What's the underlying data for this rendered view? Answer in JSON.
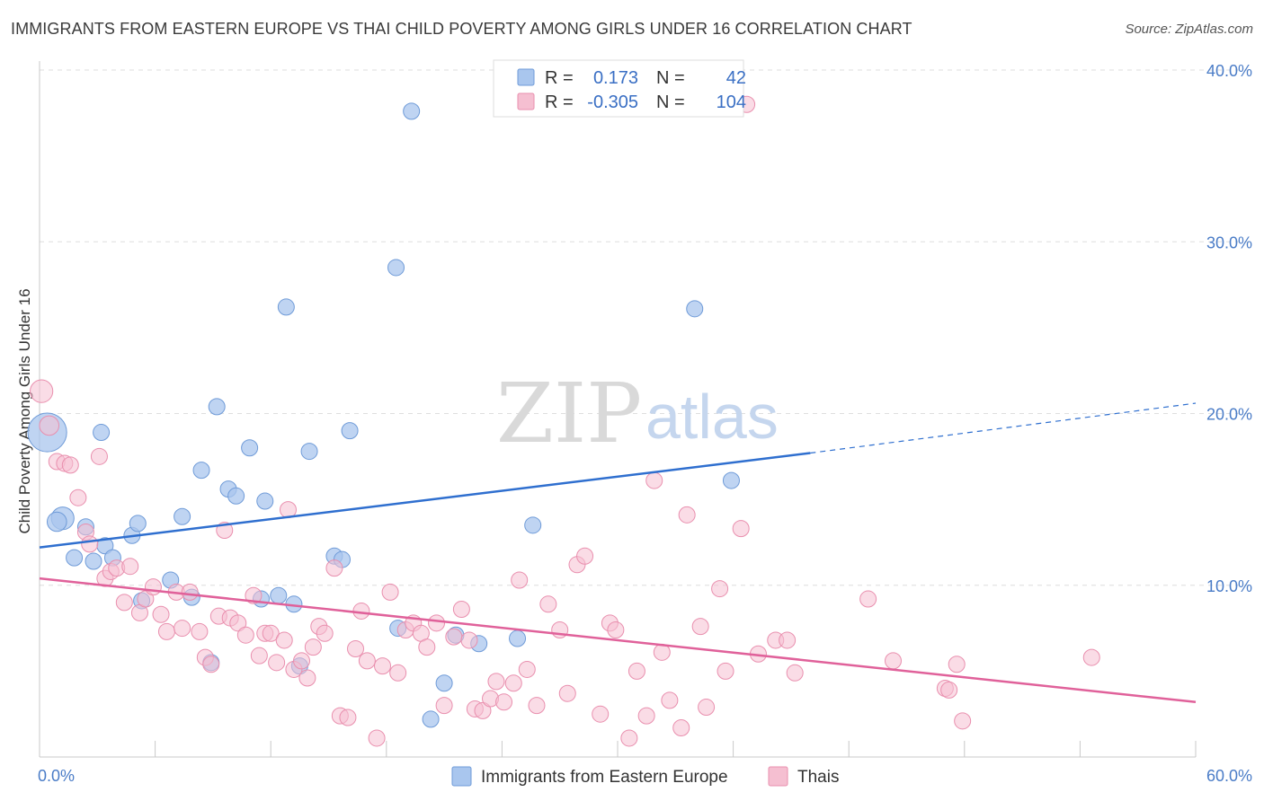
{
  "title": "IMMIGRANTS FROM EASTERN EUROPE VS THAI CHILD POVERTY AMONG GIRLS UNDER 16 CORRELATION CHART",
  "source": "Source: ZipAtlas.com",
  "watermark": {
    "zip": "ZIP",
    "atlas": "atlas"
  },
  "colors": {
    "blue_fill": "#a9c6ee",
    "blue_stroke": "#6f9bd8",
    "blue_line": "#2f6fcf",
    "pink_fill": "#f5bfd1",
    "pink_stroke": "#e98fae",
    "pink_line": "#e0619a"
  },
  "legend": {
    "rows": [
      {
        "r_label": "R =",
        "r_value": "0.173",
        "n_label": "N =",
        "n_value": "42"
      },
      {
        "r_label": "R =",
        "r_value": "-0.305",
        "n_label": "N =",
        "n_value": "104"
      }
    ]
  },
  "bottom_legend": [
    "Immigrants from Eastern Europe",
    "Thais"
  ],
  "chart_data": {
    "type": "scatter",
    "ylabel": "Child Poverty Among Girls Under 16",
    "xlim": [
      0,
      60
    ],
    "ylim": [
      0,
      40
    ],
    "x_tick_labels": [
      "0.0%",
      "60.0%"
    ],
    "y_ticks": [
      10,
      20,
      30,
      40
    ],
    "y_tick_labels": [
      "10.0%",
      "20.0%",
      "30.0%",
      "40.0%"
    ],
    "grid": true,
    "series": [
      {
        "name": "Immigrants from Eastern Europe",
        "trend": {
          "x0": 0,
          "y0": 12.2,
          "x1": 40,
          "y1": 17.7,
          "dash_x1": 60,
          "dash_y1": 20.6
        },
        "points": [
          [
            0.4,
            18.9,
            24
          ],
          [
            1.2,
            13.9,
            14
          ],
          [
            0.9,
            13.7,
            12
          ],
          [
            1.8,
            11.6,
            10
          ],
          [
            2.4,
            13.4,
            10
          ],
          [
            2.8,
            11.4,
            10
          ],
          [
            3.2,
            18.9,
            10
          ],
          [
            3.4,
            12.3,
            10
          ],
          [
            3.8,
            11.6,
            10
          ],
          [
            4.8,
            12.9,
            10
          ],
          [
            5.1,
            13.6,
            10
          ],
          [
            5.3,
            9.1,
            10
          ],
          [
            6.8,
            10.3,
            10
          ],
          [
            7.4,
            14.0,
            10
          ],
          [
            7.9,
            9.3,
            10
          ],
          [
            8.4,
            16.7,
            10
          ],
          [
            8.9,
            5.5,
            10
          ],
          [
            9.2,
            20.4,
            10
          ],
          [
            9.8,
            15.6,
            10
          ],
          [
            10.2,
            15.2,
            10
          ],
          [
            10.9,
            18.0,
            10
          ],
          [
            11.5,
            9.2,
            10
          ],
          [
            11.7,
            14.9,
            10
          ],
          [
            12.4,
            9.4,
            10
          ],
          [
            12.8,
            26.2,
            10
          ],
          [
            13.2,
            8.9,
            10
          ],
          [
            13.5,
            5.3,
            10
          ],
          [
            14.0,
            17.8,
            10
          ],
          [
            15.3,
            11.7,
            10
          ],
          [
            15.7,
            11.5,
            10
          ],
          [
            16.1,
            19.0,
            10
          ],
          [
            18.5,
            28.5,
            10
          ],
          [
            18.6,
            7.5,
            10
          ],
          [
            19.3,
            37.6,
            10
          ],
          [
            20.3,
            2.2,
            10
          ],
          [
            21.0,
            4.3,
            10
          ],
          [
            21.6,
            7.1,
            10
          ],
          [
            22.8,
            6.6,
            10
          ],
          [
            24.8,
            6.9,
            10
          ],
          [
            25.6,
            13.5,
            10
          ],
          [
            34.0,
            26.1,
            10
          ],
          [
            35.9,
            16.1,
            10
          ]
        ]
      },
      {
        "name": "Thais",
        "trend": {
          "x0": 0,
          "y0": 10.4,
          "x1": 60,
          "y1": 3.2
        },
        "points": [
          [
            0.1,
            21.3,
            14
          ],
          [
            0.5,
            19.3,
            12
          ],
          [
            0.9,
            17.2,
            10
          ],
          [
            1.3,
            17.1,
            10
          ],
          [
            1.6,
            17.0,
            10
          ],
          [
            2.0,
            15.1,
            10
          ],
          [
            2.4,
            13.1,
            10
          ],
          [
            2.6,
            12.4,
            10
          ],
          [
            3.1,
            17.5,
            10
          ],
          [
            3.4,
            10.4,
            10
          ],
          [
            3.7,
            10.8,
            10
          ],
          [
            4.0,
            11.0,
            10
          ],
          [
            4.4,
            9.0,
            10
          ],
          [
            4.7,
            11.1,
            10
          ],
          [
            5.2,
            8.4,
            10
          ],
          [
            5.5,
            9.2,
            10
          ],
          [
            5.9,
            9.9,
            10
          ],
          [
            6.3,
            8.3,
            10
          ],
          [
            6.6,
            7.3,
            10
          ],
          [
            7.1,
            9.6,
            10
          ],
          [
            7.4,
            7.5,
            10
          ],
          [
            7.8,
            9.6,
            10
          ],
          [
            8.3,
            7.3,
            10
          ],
          [
            8.6,
            5.8,
            10
          ],
          [
            8.9,
            5.4,
            10
          ],
          [
            9.3,
            8.2,
            10
          ],
          [
            9.6,
            13.2,
            10
          ],
          [
            9.9,
            8.1,
            10
          ],
          [
            10.3,
            7.8,
            10
          ],
          [
            10.7,
            7.1,
            10
          ],
          [
            11.1,
            9.4,
            10
          ],
          [
            11.4,
            5.9,
            10
          ],
          [
            11.7,
            7.2,
            10
          ],
          [
            12.0,
            7.2,
            10
          ],
          [
            12.3,
            5.5,
            10
          ],
          [
            12.7,
            6.8,
            10
          ],
          [
            12.9,
            14.4,
            10
          ],
          [
            13.2,
            5.1,
            10
          ],
          [
            13.6,
            5.6,
            10
          ],
          [
            13.9,
            4.6,
            10
          ],
          [
            14.2,
            6.4,
            10
          ],
          [
            14.5,
            7.6,
            10
          ],
          [
            14.8,
            7.2,
            10
          ],
          [
            15.3,
            11.0,
            10
          ],
          [
            15.6,
            2.4,
            10
          ],
          [
            16.0,
            2.3,
            10
          ],
          [
            16.4,
            6.3,
            10
          ],
          [
            16.7,
            8.5,
            10
          ],
          [
            17.0,
            5.6,
            10
          ],
          [
            17.5,
            1.1,
            10
          ],
          [
            17.8,
            5.3,
            10
          ],
          [
            18.2,
            9.6,
            10
          ],
          [
            18.6,
            4.9,
            10
          ],
          [
            19.0,
            7.4,
            10
          ],
          [
            19.4,
            7.8,
            10
          ],
          [
            19.8,
            7.2,
            10
          ],
          [
            20.1,
            6.4,
            10
          ],
          [
            20.6,
            7.8,
            10
          ],
          [
            21.0,
            3.0,
            10
          ],
          [
            21.5,
            7.0,
            10
          ],
          [
            21.9,
            8.6,
            10
          ],
          [
            22.3,
            6.8,
            10
          ],
          [
            22.6,
            2.8,
            10
          ],
          [
            23.0,
            2.7,
            10
          ],
          [
            23.4,
            3.4,
            10
          ],
          [
            23.7,
            4.4,
            10
          ],
          [
            24.1,
            3.2,
            10
          ],
          [
            24.6,
            4.3,
            10
          ],
          [
            24.9,
            10.3,
            10
          ],
          [
            25.3,
            5.1,
            10
          ],
          [
            25.8,
            3.0,
            10
          ],
          [
            26.4,
            8.9,
            10
          ],
          [
            27.0,
            7.4,
            10
          ],
          [
            27.4,
            3.7,
            10
          ],
          [
            27.9,
            11.2,
            10
          ],
          [
            28.3,
            11.7,
            10
          ],
          [
            29.1,
            2.5,
            10
          ],
          [
            29.6,
            7.8,
            10
          ],
          [
            29.9,
            7.4,
            10
          ],
          [
            30.6,
            1.1,
            10
          ],
          [
            31.0,
            5.0,
            10
          ],
          [
            31.5,
            2.4,
            10
          ],
          [
            31.9,
            16.1,
            10
          ],
          [
            32.3,
            6.1,
            10
          ],
          [
            32.7,
            3.3,
            10
          ],
          [
            33.3,
            1.7,
            10
          ],
          [
            33.6,
            14.1,
            10
          ],
          [
            34.3,
            7.6,
            10
          ],
          [
            34.6,
            2.9,
            10
          ],
          [
            35.3,
            9.8,
            10
          ],
          [
            35.6,
            5.0,
            10
          ],
          [
            36.4,
            13.3,
            10
          ],
          [
            36.7,
            38.0,
            10
          ],
          [
            37.3,
            6.0,
            10
          ],
          [
            38.2,
            6.8,
            10
          ],
          [
            38.8,
            6.8,
            10
          ],
          [
            39.2,
            4.9,
            10
          ],
          [
            43.0,
            9.2,
            10
          ],
          [
            44.3,
            5.6,
            10
          ],
          [
            47.0,
            4.0,
            10
          ],
          [
            47.2,
            3.9,
            10
          ],
          [
            47.6,
            5.4,
            10
          ],
          [
            47.9,
            2.1,
            10
          ],
          [
            54.6,
            5.8,
            10
          ]
        ]
      }
    ]
  }
}
